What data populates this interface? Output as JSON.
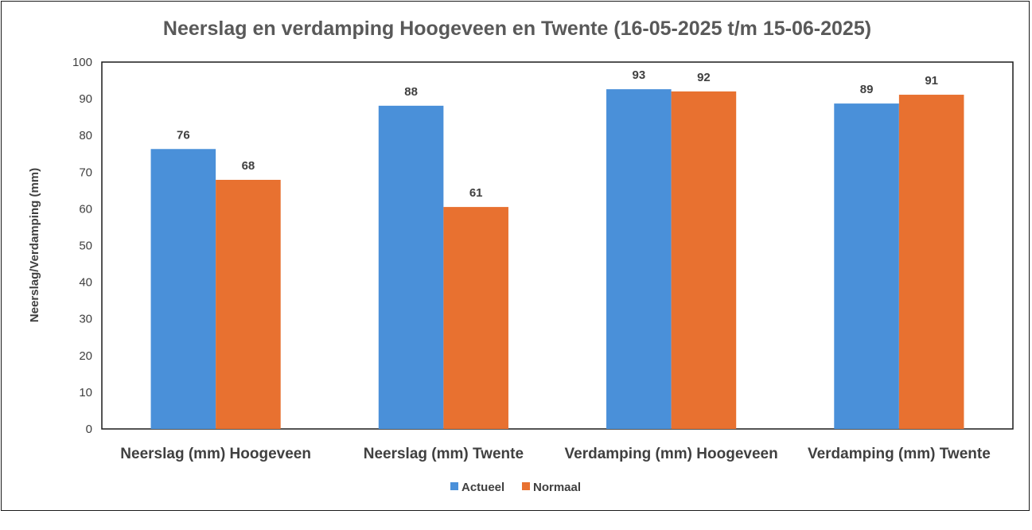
{
  "chart_data": {
    "type": "bar",
    "title": "Neerslag en verdamping Hoogeveen en Twente (16-05-2025 t/m 15-06-2025)",
    "ylabel": "Neerslag/Verdamping (mm)",
    "xlabel": "",
    "ylim": [
      0,
      100
    ],
    "yticks": [
      0,
      10,
      20,
      30,
      40,
      50,
      60,
      70,
      80,
      90,
      100
    ],
    "categories": [
      "Neerslag (mm) Hoogeveen",
      "Neerslag (mm) Twente",
      "Verdamping (mm) Hoogeveen",
      "Verdamping (mm) Twente"
    ],
    "series": [
      {
        "name": "Actueel",
        "color": "#4A90D9",
        "values": [
          76.3,
          88.1,
          92.6,
          88.7
        ],
        "labels": [
          "76",
          "88",
          "93",
          "89"
        ]
      },
      {
        "name": "Normaal",
        "color": "#E87130",
        "values": [
          67.9,
          60.5,
          92.0,
          91.1
        ],
        "labels": [
          "68",
          "61",
          "92",
          "91"
        ]
      }
    ],
    "grid": false,
    "legend_position": "bottom"
  }
}
